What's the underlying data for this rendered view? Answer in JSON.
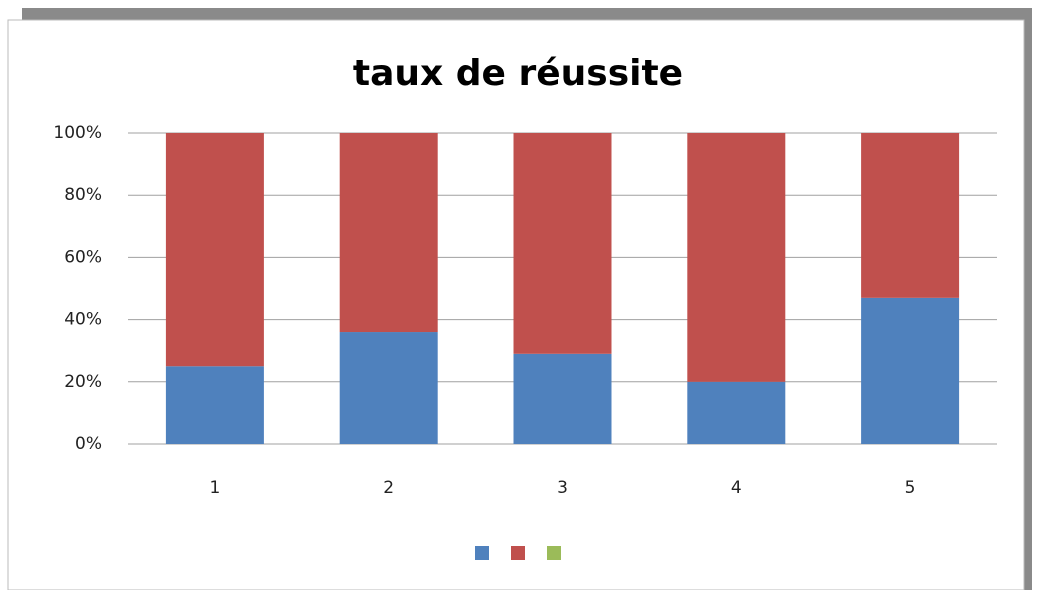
{
  "chart_data": {
    "type": "stacked_bar",
    "title": "taux de réussite",
    "categories": [
      "1",
      "2",
      "3",
      "4",
      "5"
    ],
    "series": [
      {
        "color": "#4f81bd",
        "values": [
          25,
          36,
          29,
          20,
          47
        ]
      },
      {
        "color": "#c0504d",
        "values": [
          75,
          64,
          71,
          80,
          53
        ]
      },
      {
        "color": "#9bbb59",
        "values": [
          0,
          0,
          0,
          0,
          0
        ]
      }
    ],
    "ylim": [
      0,
      100
    ],
    "yticks": [
      {
        "value": 0,
        "label": "0%"
      },
      {
        "value": 20,
        "label": "20%"
      },
      {
        "value": 40,
        "label": "40%"
      },
      {
        "value": 60,
        "label": "60%"
      },
      {
        "value": 80,
        "label": "80%"
      },
      {
        "value": 100,
        "label": "100%"
      }
    ],
    "grid": true,
    "legend": "bottom"
  }
}
